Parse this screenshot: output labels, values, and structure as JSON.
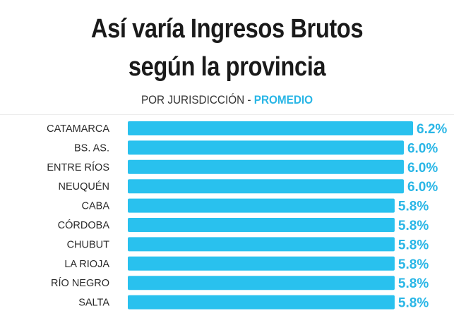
{
  "header": {
    "title_line1": "Así varía Ingresos Brutos",
    "title_line2": "según la provincia",
    "subtitle_prefix": "POR JURISDICCIÓN - ",
    "subtitle_accent": "PROMEDIO"
  },
  "colors": {
    "bar": "#29c1ee",
    "value_text": "#29b6e6",
    "label_text": "#2a2a2a"
  },
  "chart_data": {
    "type": "bar",
    "orientation": "horizontal",
    "title": "Así varía Ingresos Brutos según la provincia",
    "subtitle": "POR JURISDICCIÓN - PROMEDIO",
    "categories": [
      "CATAMARCA",
      "BS. AS.",
      "ENTRE RÍOS",
      "NEUQUÉN",
      "CABA",
      "CÓRDOBA",
      "CHUBUT",
      "LA RIOJA",
      "RÍO NEGRO",
      "SALTA"
    ],
    "values": [
      6.2,
      6.0,
      6.0,
      6.0,
      5.8,
      5.8,
      5.8,
      5.8,
      5.8,
      5.8
    ],
    "value_labels": [
      "6.2%",
      "6.0%",
      "6.0%",
      "6.0%",
      "5.8%",
      "5.8%",
      "5.8%",
      "5.8%",
      "5.8%",
      "5.8%"
    ],
    "xlim": [
      0,
      6.2
    ],
    "grid": false,
    "legend": "none"
  }
}
